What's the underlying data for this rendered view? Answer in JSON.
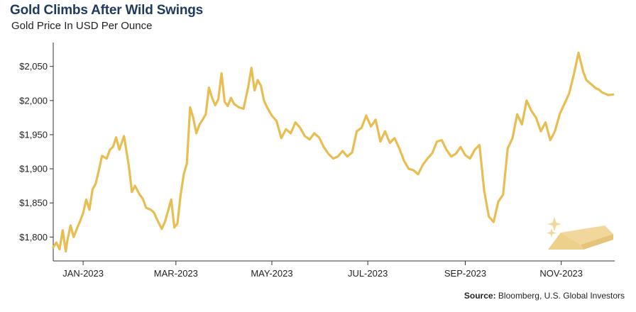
{
  "header": {
    "title": "Gold Climbs After Wild Swings",
    "subtitle": "Gold Price In USD Per Ounce"
  },
  "source": {
    "label": "Source:",
    "text": "Bloomberg, U.S. Global Investors"
  },
  "colors": {
    "line": "#e8bd52",
    "axis": "#333333",
    "grid": "#d5d5d5",
    "title": "#1f3a5f"
  },
  "decor": {
    "icon": "gold-bar-icon"
  },
  "chart_data": {
    "type": "line",
    "title": "Gold Climbs After Wild Swings",
    "subtitle": "Gold Price In USD Per Ounce",
    "xlabel": "",
    "ylabel": "",
    "ylim": [
      1765,
      2085
    ],
    "xlim": [
      "2022-12-27",
      "2023-12-19"
    ],
    "yticks": [
      {
        "value": 1800,
        "label": "$1,800"
      },
      {
        "value": 1850,
        "label": "$1,850"
      },
      {
        "value": 1900,
        "label": "$1,900"
      },
      {
        "value": 1950,
        "label": "$1,950"
      },
      {
        "value": 2000,
        "label": "$2,000"
      },
      {
        "value": 2050,
        "label": "$2,050"
      }
    ],
    "xticks": [
      {
        "date": "2023-01-15",
        "label": "JAN-2023"
      },
      {
        "date": "2023-03-15",
        "label": "MAR-2023"
      },
      {
        "date": "2023-05-15",
        "label": "MAY-2023"
      },
      {
        "date": "2023-07-15",
        "label": "JUL-2023"
      },
      {
        "date": "2023-09-15",
        "label": "SEP-2023"
      },
      {
        "date": "2023-11-15",
        "label": "NOV-2023"
      }
    ],
    "grid": "horizontal",
    "legend": "none",
    "series": [
      {
        "x": [
          "2022-12-27",
          "2022-12-29",
          "2022-12-31",
          "2023-01-02",
          "2023-01-04",
          "2023-01-05",
          "2023-01-07",
          "2023-01-09",
          "2023-01-11",
          "2023-01-13",
          "2023-01-15",
          "2023-01-17",
          "2023-01-19",
          "2023-01-21",
          "2023-01-23",
          "2023-01-25",
          "2023-01-27",
          "2023-01-30",
          "2023-02-01",
          "2023-02-03",
          "2023-02-05",
          "2023-02-07",
          "2023-02-10",
          "2023-02-13",
          "2023-02-15",
          "2023-02-17",
          "2023-02-20",
          "2023-02-22",
          "2023-02-24",
          "2023-02-27",
          "2023-03-01",
          "2023-03-03",
          "2023-03-06",
          "2023-03-08",
          "2023-03-10",
          "2023-03-12",
          "2023-03-14",
          "2023-03-16",
          "2023-03-18",
          "2023-03-20",
          "2023-03-22",
          "2023-03-24",
          "2023-03-26",
          "2023-03-28",
          "2023-03-30",
          "2023-04-01",
          "2023-04-03",
          "2023-04-05",
          "2023-04-07",
          "2023-04-09",
          "2023-04-11",
          "2023-04-13",
          "2023-04-15",
          "2023-04-17",
          "2023-04-19",
          "2023-04-21",
          "2023-04-24",
          "2023-04-27",
          "2023-04-30",
          "2023-05-02",
          "2023-05-04",
          "2023-05-06",
          "2023-05-08",
          "2023-05-10",
          "2023-05-12",
          "2023-05-15",
          "2023-05-18",
          "2023-05-21",
          "2023-05-24",
          "2023-05-27",
          "2023-05-30",
          "2023-06-02",
          "2023-06-05",
          "2023-06-08",
          "2023-06-11",
          "2023-06-14",
          "2023-06-17",
          "2023-06-20",
          "2023-06-23",
          "2023-06-26",
          "2023-06-29",
          "2023-07-02",
          "2023-07-05",
          "2023-07-08",
          "2023-07-11",
          "2023-07-14",
          "2023-07-17",
          "2023-07-20",
          "2023-07-23",
          "2023-07-26",
          "2023-07-29",
          "2023-08-01",
          "2023-08-04",
          "2023-08-07",
          "2023-08-10",
          "2023-08-13",
          "2023-08-16",
          "2023-08-19",
          "2023-08-22",
          "2023-08-25",
          "2023-08-28",
          "2023-08-31",
          "2023-09-03",
          "2023-09-06",
          "2023-09-09",
          "2023-09-12",
          "2023-09-15",
          "2023-09-18",
          "2023-09-21",
          "2023-09-24",
          "2023-09-27",
          "2023-09-30",
          "2023-10-03",
          "2023-10-06",
          "2023-10-09",
          "2023-10-12",
          "2023-10-15",
          "2023-10-18",
          "2023-10-21",
          "2023-10-24",
          "2023-10-27",
          "2023-10-30",
          "2023-11-02",
          "2023-11-05",
          "2023-11-08",
          "2023-11-11",
          "2023-11-14",
          "2023-11-17",
          "2023-11-20",
          "2023-11-23",
          "2023-11-26",
          "2023-11-29",
          "2023-12-01",
          "2023-12-03",
          "2023-12-05",
          "2023-12-07",
          "2023-12-09",
          "2023-12-11",
          "2023-12-13",
          "2023-12-15",
          "2023-12-18"
        ],
        "values": [
          1785,
          1792,
          1782,
          1810,
          1779,
          1795,
          1817,
          1800,
          1812,
          1823,
          1835,
          1855,
          1840,
          1870,
          1878,
          1898,
          1919,
          1915,
          1928,
          1932,
          1946,
          1928,
          1948,
          1905,
          1866,
          1875,
          1862,
          1856,
          1843,
          1840,
          1836,
          1826,
          1812,
          1822,
          1838,
          1855,
          1814,
          1820,
          1862,
          1892,
          1908,
          1990,
          1975,
          1952,
          1965,
          1972,
          1980,
          2019,
          2004,
          1993,
          2002,
          2040,
          1998,
          1992,
          2004,
          1995,
          1990,
          1988,
          2020,
          2048,
          2015,
          2030,
          2022,
          2000,
          1990,
          1978,
          1970,
          1945,
          1958,
          1952,
          1968,
          1960,
          1948,
          1943,
          1952,
          1946,
          1932,
          1922,
          1915,
          1918,
          1926,
          1918,
          1924,
          1955,
          1960,
          1978,
          1962,
          1972,
          1940,
          1955,
          1938,
          1945,
          1930,
          1912,
          1900,
          1898,
          1892,
          1906,
          1915,
          1923,
          1940,
          1942,
          1928,
          1918,
          1922,
          1932,
          1920,
          1915,
          1928,
          1935,
          1868,
          1830,
          1822,
          1852,
          1862,
          1930,
          1945,
          1980,
          1965,
          2000,
          1985,
          1975,
          1955,
          1968,
          1942,
          1955,
          1980,
          1995,
          2010,
          2038,
          2070,
          2042,
          2030,
          2026,
          2022,
          2018,
          2016,
          2012,
          2010,
          2008,
          2009
        ]
      }
    ]
  }
}
